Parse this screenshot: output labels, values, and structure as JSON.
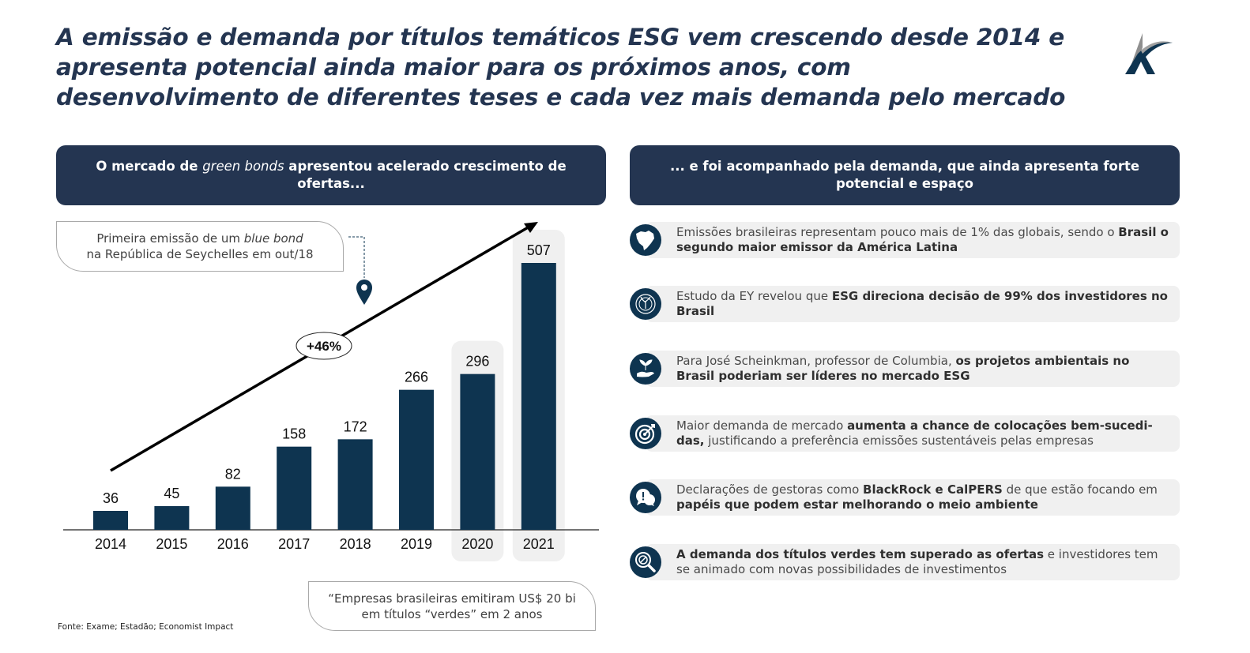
{
  "title": {
    "lines": [
      "A emissão e demanda por títulos temáticos ESG vem crescendo desde 2014 e",
      "apresenta potencial ainda maior para os próximos anos, com",
      "desenvolvimento de diferentes teses e cada vez mais demanda pelo mercado"
    ]
  },
  "logo": {
    "icon": "company-logo-k-icon"
  },
  "left_panel": {
    "header_parts": [
      "O mercado de ",
      "green bonds",
      " apresentou acelerado crescimento de ofertas..."
    ],
    "callout_top": {
      "line1_prefix": "Primeira emissão de um ",
      "line1_italic": "blue bond",
      "line2": "na República de Seychelles em out/18"
    },
    "callout_bottom": {
      "line1": "“Empresas brasileiras emitiram US$ 20 bi",
      "line2": "em títulos “verdes” em 2 anos"
    },
    "source": "Fonte: Exame; Estadão; Economist Impact"
  },
  "chart_data": {
    "type": "bar",
    "title": "",
    "xlabel": "",
    "ylabel": "",
    "categories": [
      "2014",
      "2015",
      "2016",
      "2017",
      "2018",
      "2019",
      "2020",
      "2021"
    ],
    "values": [
      36,
      45,
      82,
      158,
      172,
      266,
      296,
      507
    ],
    "highlighted": [
      "2020",
      "2021"
    ],
    "ylim": [
      0,
      507
    ],
    "grid": false,
    "trend_annotation": "+46%",
    "marker_annotation_year": "2018",
    "bar_color": "#0e3450",
    "highlight_color": "#f0f0f0"
  },
  "right_panel": {
    "header": "... e foi acompanhado pela demanda, que ainda apresenta forte potencial e espaço",
    "items": [
      {
        "icon": "brazil-map-icon",
        "parts": [
          [
            "Emissões brasileiras representam pouco mais de 1% das globais, sendo o ",
            false
          ],
          [
            "Brasil o segundo maior emissor da América Latina",
            true
          ]
        ]
      },
      {
        "icon": "globe-plant-icon",
        "parts": [
          [
            "Estudo da EY revelou que ",
            false
          ],
          [
            "ESG direciona decisão de 99% dos investidores no Brasil",
            true
          ]
        ]
      },
      {
        "icon": "hand-plant-icon",
        "parts": [
          [
            "Para José Scheinkman, professor de Columbia, ",
            false
          ],
          [
            "os projetos ambientais no Brasil poderiam ser líderes no mercado ESG",
            true
          ]
        ]
      },
      {
        "icon": "target-icon",
        "parts": [
          [
            "Maior demanda de mercado ",
            false
          ],
          [
            "aumenta a chance de colocações bem-sucedi-das,",
            true
          ],
          [
            " justificando a preferência emissões sustentáveis pelas empresas",
            false
          ]
        ]
      },
      {
        "icon": "speech-bubbles-icon",
        "parts": [
          [
            "Declarações de gestoras como ",
            false
          ],
          [
            "BlackRock e CalPERS",
            true
          ],
          [
            " de que estão focando em ",
            false
          ],
          [
            "papéis que podem estar melhorando o meio ambiente",
            true
          ]
        ]
      },
      {
        "icon": "magnifier-icon",
        "parts": [
          [
            "A demanda dos títulos verdes tem superado as ofertas",
            true
          ],
          [
            " e investidores tem se animado com novas possibilidades de investimentos",
            false
          ]
        ]
      }
    ]
  }
}
